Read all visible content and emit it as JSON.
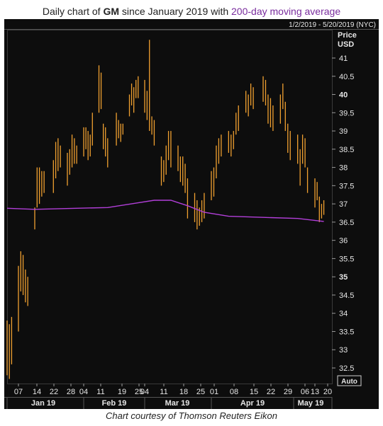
{
  "title": {
    "prefix": "Daily chart of ",
    "ticker": "GM",
    "middle": " since January 2019 with ",
    "ma_text": "200-day moving average"
  },
  "caption": "Chart courtesy of Thomson Reuters Eikon",
  "colors": {
    "background": "#0d0d0d",
    "candle": "#f0a030",
    "ma": "#b23fd9",
    "grid": "#262626",
    "text": "#e6e6e6",
    "title_ma": "#7a2d9e"
  },
  "chart_data": {
    "type": "ohlc",
    "date_range": "1/2/2019 - 5/20/2019 (NYC)",
    "ylabel": [
      "Price",
      "USD"
    ],
    "ylim": [
      32.0,
      41.8
    ],
    "grid": false,
    "y_ticks": [
      "41",
      "40.5",
      "40",
      "39.5",
      "39",
      "38.5",
      "38",
      "37.5",
      "37",
      "36.5",
      "36",
      "35.5",
      "35",
      "34.5",
      "34",
      "33.5",
      "33",
      "32.5"
    ],
    "y_ticks_bold": [
      "40",
      "35"
    ],
    "auto_label": "Auto",
    "x_day_ticks": [
      "07",
      "14",
      "22",
      "28",
      "04",
      "11",
      "19",
      "25",
      "04",
      "11",
      "18",
      "25",
      "01",
      "08",
      "15",
      "22",
      "29",
      "06",
      "13",
      "20"
    ],
    "x_month_labels": [
      "Jan 19",
      "Feb 19",
      "Mar 19",
      "Apr 19",
      "May 19"
    ],
    "price_bars": [
      {
        "date": "2019-01-02",
        "high": 33.8,
        "low": 32.3
      },
      {
        "date": "2019-01-03",
        "high": 33.7,
        "low": 32.2
      },
      {
        "date": "2019-01-04",
        "high": 33.9,
        "low": 32.6
      },
      {
        "date": "2019-01-07",
        "high": 35.3,
        "low": 33.5
      },
      {
        "date": "2019-01-08",
        "high": 35.7,
        "low": 34.6
      },
      {
        "date": "2019-01-09",
        "high": 35.6,
        "low": 34.5
      },
      {
        "date": "2019-01-10",
        "high": 35.2,
        "low": 34.3
      },
      {
        "date": "2019-01-11",
        "high": 35.0,
        "low": 34.2
      },
      {
        "date": "2019-01-14",
        "high": 36.9,
        "low": 36.3
      },
      {
        "date": "2019-01-15",
        "high": 38.0,
        "low": 36.9
      },
      {
        "date": "2019-01-16",
        "high": 38.0,
        "low": 37.0
      },
      {
        "date": "2019-01-17",
        "high": 37.9,
        "low": 37.2
      },
      {
        "date": "2019-01-18",
        "high": 37.9,
        "low": 37.3
      },
      {
        "date": "2019-01-22",
        "high": 38.2,
        "low": 37.3
      },
      {
        "date": "2019-01-23",
        "high": 38.7,
        "low": 37.7
      },
      {
        "date": "2019-01-24",
        "high": 38.8,
        "low": 37.9
      },
      {
        "date": "2019-01-25",
        "high": 38.6,
        "low": 38.0
      },
      {
        "date": "2019-01-28",
        "high": 38.4,
        "low": 37.5
      },
      {
        "date": "2019-01-29",
        "high": 38.5,
        "low": 37.8
      },
      {
        "date": "2019-01-30",
        "high": 38.9,
        "low": 38.0
      },
      {
        "date": "2019-01-31",
        "high": 38.8,
        "low": 38.1
      },
      {
        "date": "2019-02-01",
        "high": 38.6,
        "low": 38.1
      },
      {
        "date": "2019-02-04",
        "high": 39.1,
        "low": 38.3
      },
      {
        "date": "2019-02-05",
        "high": 39.1,
        "low": 38.5
      },
      {
        "date": "2019-02-06",
        "high": 39.0,
        "low": 38.2
      },
      {
        "date": "2019-02-07",
        "high": 38.9,
        "low": 38.3
      },
      {
        "date": "2019-02-08",
        "high": 39.5,
        "low": 38.6
      },
      {
        "date": "2019-02-11",
        "high": 40.8,
        "low": 39.5
      },
      {
        "date": "2019-02-12",
        "high": 40.6,
        "low": 39.6
      },
      {
        "date": "2019-02-13",
        "high": 39.2,
        "low": 38.5
      },
      {
        "date": "2019-02-14",
        "high": 39.1,
        "low": 38.3
      },
      {
        "date": "2019-02-15",
        "high": 38.8,
        "low": 38.0
      },
      {
        "date": "2019-02-19",
        "high": 39.5,
        "low": 38.6
      },
      {
        "date": "2019-02-20",
        "high": 39.3,
        "low": 38.8
      },
      {
        "date": "2019-02-21",
        "high": 39.2,
        "low": 38.7
      },
      {
        "date": "2019-02-22",
        "high": 39.2,
        "low": 38.9
      },
      {
        "date": "2019-02-25",
        "high": 40.0,
        "low": 39.4
      },
      {
        "date": "2019-02-26",
        "high": 40.3,
        "low": 39.7
      },
      {
        "date": "2019-02-27",
        "high": 40.2,
        "low": 39.5
      },
      {
        "date": "2019-02-28",
        "high": 40.4,
        "low": 39.9
      },
      {
        "date": "2019-03-01",
        "high": 40.5,
        "low": 39.9
      },
      {
        "date": "2019-03-04",
        "high": 40.4,
        "low": 39.5
      },
      {
        "date": "2019-03-05",
        "high": 40.1,
        "low": 39.3
      },
      {
        "date": "2019-03-06",
        "high": 41.5,
        "low": 39.0
      },
      {
        "date": "2019-03-07",
        "high": 39.4,
        "low": 38.9
      },
      {
        "date": "2019-03-08",
        "high": 39.3,
        "low": 38.6
      },
      {
        "date": "2019-03-11",
        "high": 38.3,
        "low": 37.5
      },
      {
        "date": "2019-03-12",
        "high": 38.2,
        "low": 37.6
      },
      {
        "date": "2019-03-13",
        "high": 38.6,
        "low": 37.8
      },
      {
        "date": "2019-03-14",
        "high": 39.0,
        "low": 38.2
      },
      {
        "date": "2019-03-15",
        "high": 39.0,
        "low": 38.0
      },
      {
        "date": "2019-03-18",
        "high": 38.6,
        "low": 37.9
      },
      {
        "date": "2019-03-19",
        "high": 38.3,
        "low": 37.6
      },
      {
        "date": "2019-03-20",
        "high": 38.3,
        "low": 37.5
      },
      {
        "date": "2019-03-21",
        "high": 38.1,
        "low": 37.3
      },
      {
        "date": "2019-03-22",
        "high": 37.7,
        "low": 36.6
      },
      {
        "date": "2019-03-25",
        "high": 37.3,
        "low": 36.5
      },
      {
        "date": "2019-03-26",
        "high": 37.1,
        "low": 36.3
      },
      {
        "date": "2019-03-27",
        "high": 36.9,
        "low": 36.4
      },
      {
        "date": "2019-03-28",
        "high": 37.1,
        "low": 36.5
      },
      {
        "date": "2019-03-29",
        "high": 37.3,
        "low": 36.6
      },
      {
        "date": "2019-04-01",
        "high": 37.9,
        "low": 37.1
      },
      {
        "date": "2019-04-02",
        "high": 38.0,
        "low": 37.2
      },
      {
        "date": "2019-04-03",
        "high": 38.6,
        "low": 37.7
      },
      {
        "date": "2019-04-04",
        "high": 38.8,
        "low": 38.1
      },
      {
        "date": "2019-04-05",
        "high": 38.9,
        "low": 38.3
      },
      {
        "date": "2019-04-08",
        "high": 39.0,
        "low": 38.4
      },
      {
        "date": "2019-04-09",
        "high": 38.9,
        "low": 38.3
      },
      {
        "date": "2019-04-10",
        "high": 39.0,
        "low": 38.5
      },
      {
        "date": "2019-04-11",
        "high": 39.5,
        "low": 38.9
      },
      {
        "date": "2019-04-12",
        "high": 39.7,
        "low": 39.0
      },
      {
        "date": "2019-04-15",
        "high": 40.1,
        "low": 39.5
      },
      {
        "date": "2019-04-16",
        "high": 40.0,
        "low": 39.4
      },
      {
        "date": "2019-04-17",
        "high": 40.3,
        "low": 39.7
      },
      {
        "date": "2019-04-18",
        "high": 40.2,
        "low": 39.6
      },
      {
        "date": "2019-04-22",
        "high": 40.5,
        "low": 39.8
      },
      {
        "date": "2019-04-23",
        "high": 40.4,
        "low": 39.7
      },
      {
        "date": "2019-04-24",
        "high": 40.0,
        "low": 39.2
      },
      {
        "date": "2019-04-25",
        "high": 39.9,
        "low": 39.1
      },
      {
        "date": "2019-04-26",
        "high": 39.7,
        "low": 39.0
      },
      {
        "date": "2019-04-29",
        "high": 40.0,
        "low": 39.2
      },
      {
        "date": "2019-04-30",
        "high": 40.3,
        "low": 39.6
      },
      {
        "date": "2019-05-01",
        "high": 39.8,
        "low": 39.0
      },
      {
        "date": "2019-05-02",
        "high": 39.2,
        "low": 38.4
      },
      {
        "date": "2019-05-03",
        "high": 39.0,
        "low": 38.2
      },
      {
        "date": "2019-05-06",
        "high": 38.9,
        "low": 38.1
      },
      {
        "date": "2019-05-07",
        "high": 38.5,
        "low": 37.5
      },
      {
        "date": "2019-05-08",
        "high": 38.9,
        "low": 38.1
      },
      {
        "date": "2019-05-09",
        "high": 38.8,
        "low": 38.0
      },
      {
        "date": "2019-05-10",
        "high": 38.0,
        "low": 37.3
      },
      {
        "date": "2019-05-13",
        "high": 37.7,
        "low": 36.9
      },
      {
        "date": "2019-05-14",
        "high": 37.6,
        "low": 37.1
      },
      {
        "date": "2019-05-15",
        "high": 37.2,
        "low": 36.5
      },
      {
        "date": "2019-05-16",
        "high": 37.0,
        "low": 36.6
      },
      {
        "date": "2019-05-17",
        "high": 37.1,
        "low": 36.7
      }
    ],
    "moving_average": {
      "name": "200-day moving average",
      "points": [
        {
          "date": "2019-01-02",
          "value": 36.88
        },
        {
          "date": "2019-01-14",
          "value": 36.85
        },
        {
          "date": "2019-02-01",
          "value": 36.88
        },
        {
          "date": "2019-02-15",
          "value": 36.9
        },
        {
          "date": "2019-03-01",
          "value": 37.03
        },
        {
          "date": "2019-03-08",
          "value": 37.1
        },
        {
          "date": "2019-03-15",
          "value": 37.1
        },
        {
          "date": "2019-03-22",
          "value": 36.95
        },
        {
          "date": "2019-03-29",
          "value": 36.77
        },
        {
          "date": "2019-04-08",
          "value": 36.66
        },
        {
          "date": "2019-04-22",
          "value": 36.63
        },
        {
          "date": "2019-05-06",
          "value": 36.6
        },
        {
          "date": "2019-05-17",
          "value": 36.52
        }
      ]
    }
  }
}
